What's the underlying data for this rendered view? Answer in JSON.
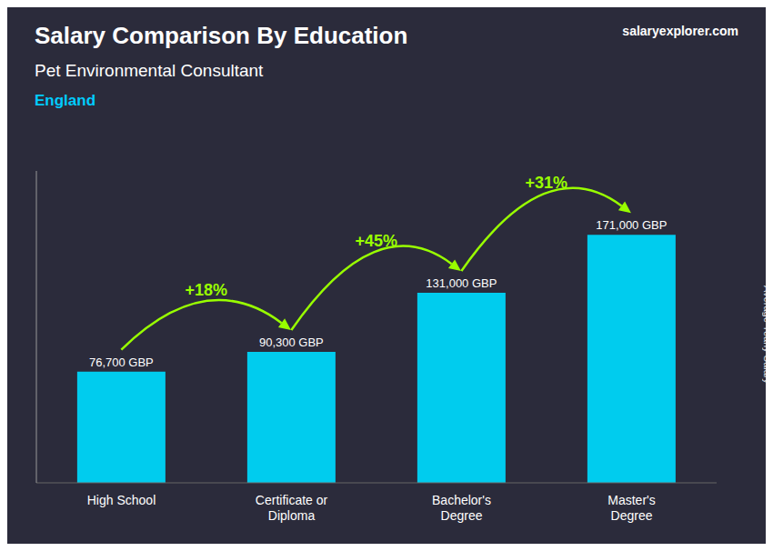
{
  "chart_data": {
    "type": "bar",
    "title": "Salary Comparison By Education",
    "subtitle": "Pet Environmental Consultant",
    "ylabel": "Average Yearly Salary",
    "categories": [
      "High School",
      "Certificate or\nDiploma",
      "Bachelor's\nDegree",
      "Master's\nDegree"
    ],
    "values": [
      76700,
      90300,
      131000,
      171000
    ],
    "value_labels": [
      "76,700 GBP",
      "90,300 GBP",
      "131,000 GBP",
      "171,000 GBP"
    ],
    "color": "#00ccee",
    "ylim": [
      0,
      215000
    ],
    "tick_labels": "x",
    "data_labels": true,
    "annotations": [
      {
        "text": "England",
        "color": "#00ccff"
      },
      {
        "text": "salaryexplorer.com"
      },
      {
        "text": "+18%",
        "from": "High School",
        "to": "Certificate or\nDiploma",
        "color": "#99ff00"
      },
      {
        "text": "+45%",
        "from": "Certificate or\nDiploma",
        "to": "Bachelor's\nDegree",
        "color": "#99ff00"
      },
      {
        "text": "+31%",
        "from": "Bachelor's\nDegree",
        "to": "Master's\nDegree",
        "color": "#99ff00"
      }
    ]
  }
}
